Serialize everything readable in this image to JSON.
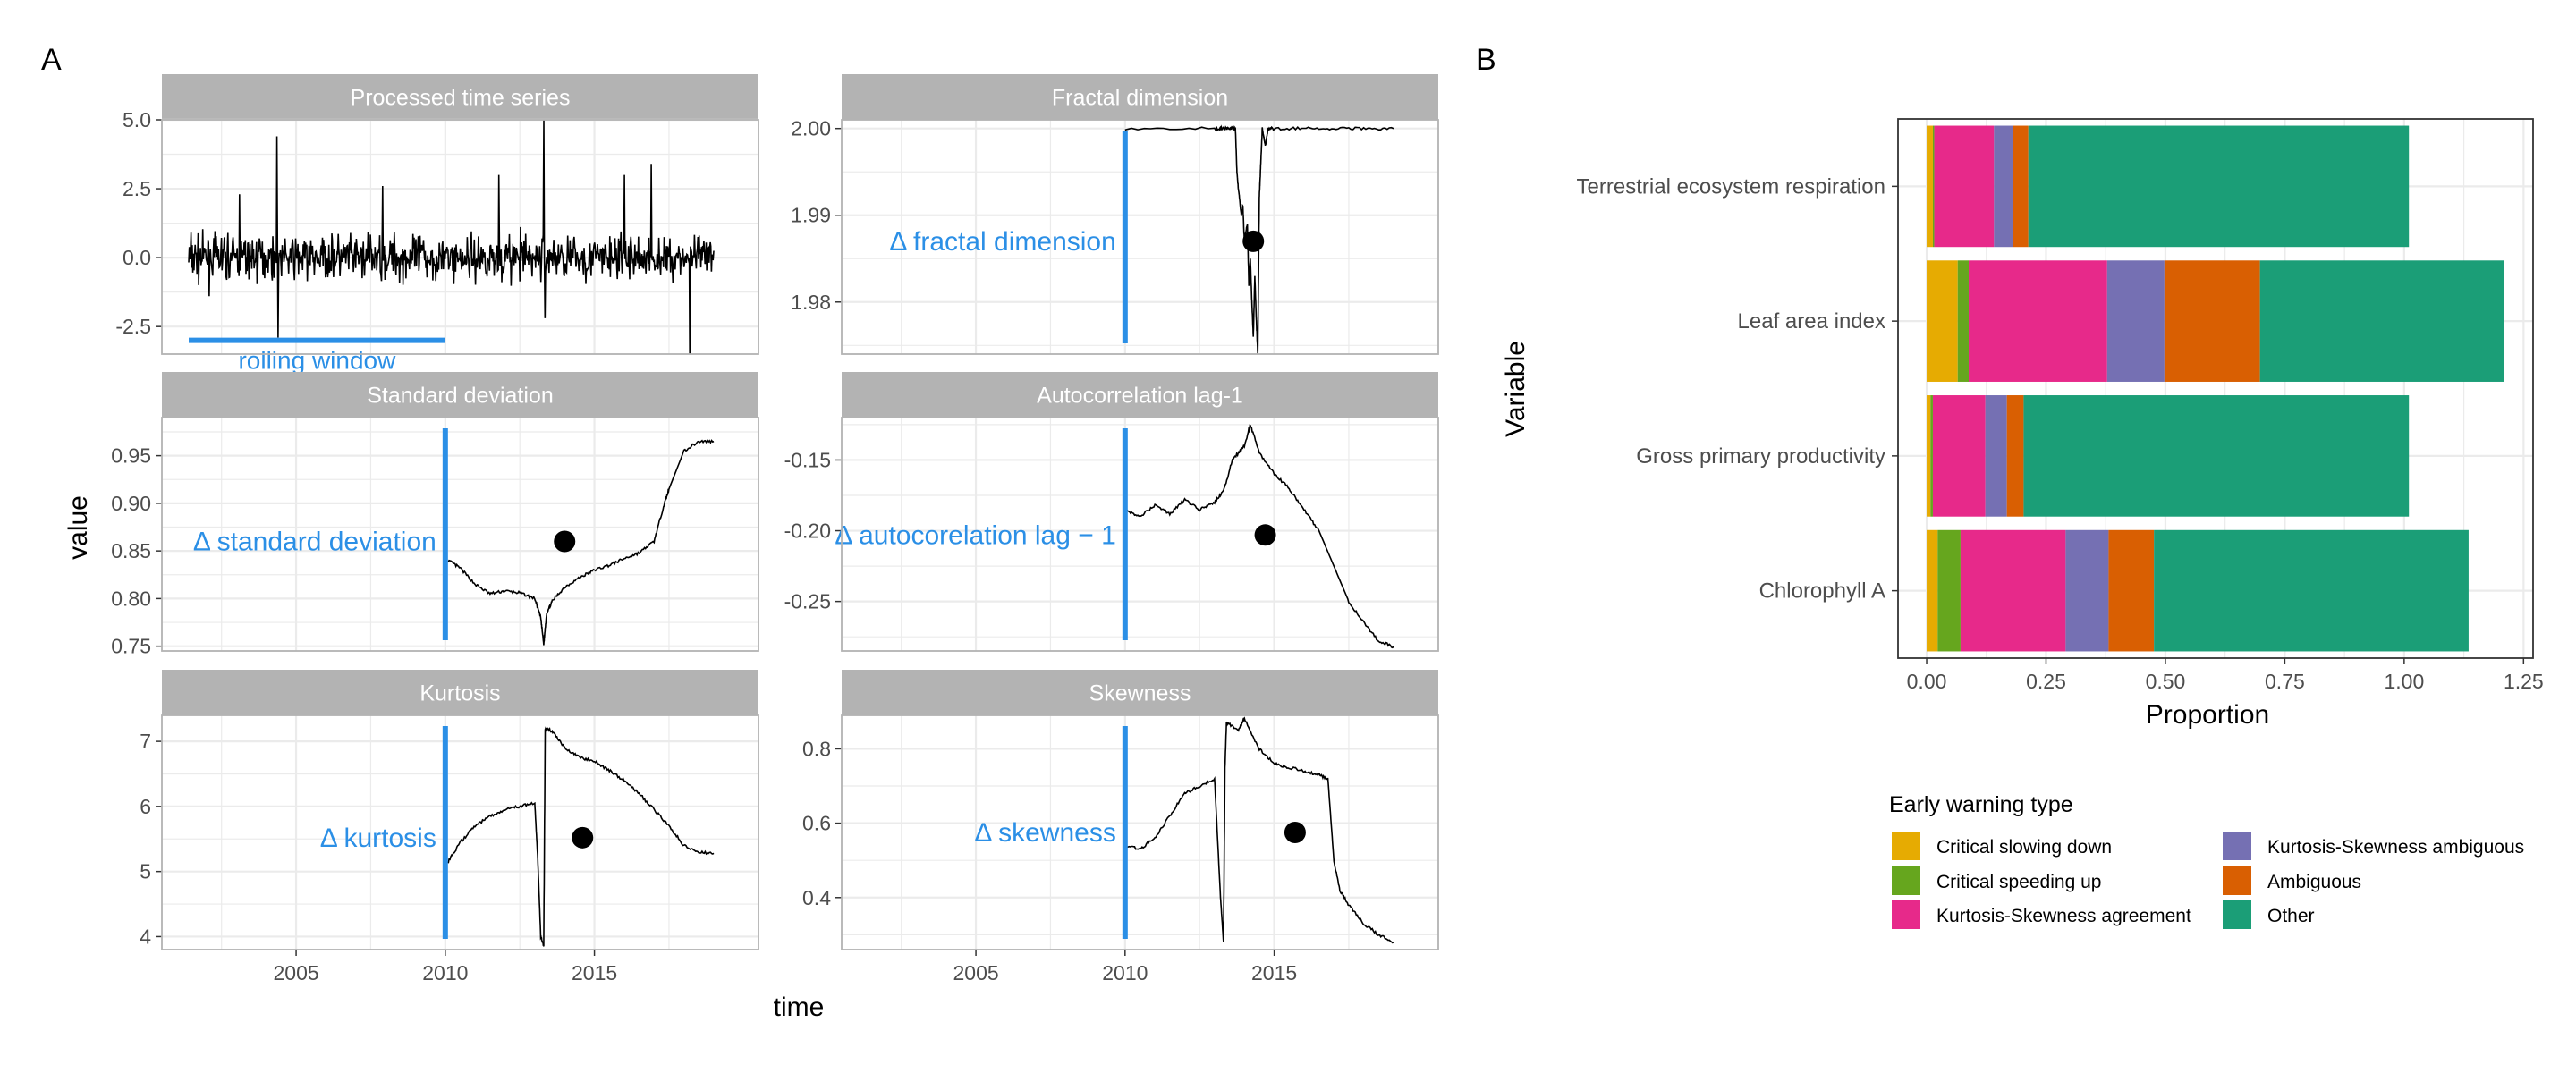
{
  "colors": {
    "strip_bg": "#b3b3b3",
    "strip_text": "#ffffff",
    "panel_border": "#b3b3b3",
    "grid": "#ebebeb",
    "annotation": "#2b8fe6",
    "line": "#000000",
    "tick_text": "#4d4d4d",
    "axis_title": "#000000"
  },
  "panel_a": {
    "label": "A",
    "xlabel": "time",
    "ylabel": "value",
    "x_ticks": [
      2005,
      2010,
      2015
    ],
    "xlim": [
      2000.5,
      2020.5
    ]
  },
  "panel_b": {
    "label": "B",
    "xlabel": "Proportion",
    "ylabel": "Variable",
    "legend_title": "Early warning type"
  },
  "chart_data": [
    {
      "type": "line",
      "title": "Processed time series",
      "ylim": [
        -3.5,
        5.0
      ],
      "y_ticks": [
        "5.0",
        "2.5",
        "0.0",
        "-2.5"
      ],
      "y_tick_values": [
        5.0,
        2.5,
        0.0,
        -2.5
      ],
      "noise": true,
      "rolling_window": {
        "label": "rolling window",
        "x_start": 2001.4,
        "x_end": 2010.0,
        "y": -3.0
      }
    },
    {
      "type": "line",
      "title": "Fractal dimension",
      "ylim": [
        1.974,
        2.001
      ],
      "y_ticks": [
        "2.00",
        "1.99",
        "1.98"
      ],
      "y_tick_values": [
        2.0,
        1.99,
        1.98
      ],
      "series_x": [
        2010.0,
        2013.0,
        2013.2,
        2013.4,
        2013.6,
        2013.7,
        2013.75,
        2013.8,
        2013.9,
        2013.95,
        2014.0,
        2014.1,
        2014.15,
        2014.2,
        2014.25,
        2014.3,
        2014.35,
        2014.4,
        2014.45,
        2014.5,
        2014.55,
        2014.6,
        2014.7,
        2014.8,
        2015.0,
        2016.0,
        2017.0,
        2018.0,
        2019.0
      ],
      "series_y": [
        2.0,
        2.0,
        2.0,
        2.0,
        2.0,
        2.0,
        1.995,
        1.993,
        1.99,
        1.991,
        1.987,
        1.989,
        1.982,
        1.985,
        1.98,
        1.976,
        1.983,
        1.978,
        1.974,
        1.992,
        1.996,
        2.0,
        1.998,
        2.0,
        2.0,
        2.0,
        2.0,
        2.0,
        2.0
      ],
      "delta_label": "Δ fractal dimension",
      "delta_x": 2010.0,
      "dot": {
        "x": 2014.3,
        "y": 1.987
      }
    },
    {
      "type": "line",
      "title": "Standard deviation",
      "ylim": [
        0.745,
        0.99
      ],
      "y_ticks": [
        "0.95",
        "0.90",
        "0.85",
        "0.80",
        "0.75"
      ],
      "y_tick_values": [
        0.95,
        0.9,
        0.85,
        0.8,
        0.75
      ],
      "series_x": [
        2010.1,
        2010.5,
        2011.0,
        2011.5,
        2012.0,
        2012.5,
        2013.0,
        2013.2,
        2013.3,
        2013.4,
        2013.6,
        2014.0,
        2014.5,
        2015.0,
        2015.5,
        2016.0,
        2016.5,
        2017.0,
        2017.3,
        2017.5,
        2018.0,
        2018.5,
        2019.0
      ],
      "series_y": [
        0.84,
        0.832,
        0.815,
        0.805,
        0.808,
        0.806,
        0.8,
        0.78,
        0.752,
        0.785,
        0.798,
        0.812,
        0.822,
        0.83,
        0.835,
        0.842,
        0.848,
        0.86,
        0.895,
        0.915,
        0.955,
        0.965,
        0.965
      ],
      "delta_label": "Δ standard deviation",
      "delta_x": 2010.0,
      "dot": {
        "x": 2014.0,
        "y": 0.86
      }
    },
    {
      "type": "line",
      "title": "Autocorrelation lag-1",
      "ylim": [
        -0.285,
        -0.12
      ],
      "y_ticks": [
        "-0.15",
        "-0.20",
        "-0.25"
      ],
      "y_tick_values": [
        -0.15,
        -0.2,
        -0.25
      ],
      "series_x": [
        2010.0,
        2010.5,
        2011.0,
        2011.5,
        2012.0,
        2012.5,
        2013.0,
        2013.3,
        2013.6,
        2014.0,
        2014.2,
        2014.5,
        2015.0,
        2015.5,
        2016.0,
        2016.5,
        2017.0,
        2017.5,
        2018.0,
        2018.5,
        2019.0
      ],
      "series_y": [
        -0.185,
        -0.19,
        -0.182,
        -0.188,
        -0.178,
        -0.185,
        -0.18,
        -0.172,
        -0.15,
        -0.14,
        -0.125,
        -0.145,
        -0.16,
        -0.17,
        -0.185,
        -0.2,
        -0.225,
        -0.25,
        -0.265,
        -0.278,
        -0.282
      ],
      "delta_label": "Δ autocorelation lag − 1",
      "delta_x": 2010.0,
      "dot": {
        "x": 2014.7,
        "y": -0.203
      }
    },
    {
      "type": "line",
      "title": "Kurtosis",
      "ylim": [
        3.8,
        7.4
      ],
      "y_ticks": [
        "7",
        "6",
        "5",
        "4"
      ],
      "y_tick_values": [
        7,
        6,
        5,
        4
      ],
      "series_x": [
        2010.1,
        2010.5,
        2011.0,
        2011.5,
        2012.0,
        2012.5,
        2013.0,
        2013.1,
        2013.2,
        2013.3,
        2013.35,
        2013.4,
        2013.6,
        2014.0,
        2014.5,
        2015.0,
        2015.5,
        2016.0,
        2016.5,
        2017.0,
        2017.5,
        2018.0,
        2018.5,
        2019.0
      ],
      "series_y": [
        5.15,
        5.45,
        5.7,
        5.85,
        5.95,
        6.0,
        6.05,
        5.2,
        4.0,
        3.85,
        7.2,
        7.2,
        7.15,
        6.9,
        6.75,
        6.7,
        6.55,
        6.4,
        6.2,
        5.95,
        5.7,
        5.4,
        5.3,
        5.28
      ],
      "delta_label": "Δ kurtosis",
      "delta_x": 2010.0,
      "dot": {
        "x": 2014.6,
        "y": 5.52
      }
    },
    {
      "type": "line",
      "title": "Skewness",
      "ylim": [
        0.26,
        0.89
      ],
      "y_ticks": [
        "0.8",
        "0.6",
        "0.4"
      ],
      "y_tick_values": [
        0.8,
        0.6,
        0.4
      ],
      "series_x": [
        2010.0,
        2010.5,
        2011.0,
        2011.5,
        2012.0,
        2012.5,
        2013.0,
        2013.2,
        2013.3,
        2013.35,
        2013.4,
        2013.8,
        2014.0,
        2014.5,
        2015.0,
        2015.5,
        2016.0,
        2016.5,
        2016.8,
        2017.0,
        2017.2,
        2017.5,
        2018.0,
        2018.5,
        2019.0
      ],
      "series_y": [
        0.54,
        0.53,
        0.56,
        0.62,
        0.68,
        0.7,
        0.72,
        0.4,
        0.28,
        0.75,
        0.87,
        0.85,
        0.88,
        0.8,
        0.76,
        0.75,
        0.74,
        0.73,
        0.72,
        0.5,
        0.42,
        0.38,
        0.33,
        0.3,
        0.28
      ],
      "delta_label": "Δ skewness",
      "delta_x": 2010.0,
      "dot": {
        "x": 2015.7,
        "y": 0.575
      }
    },
    {
      "type": "bar",
      "stacked": true,
      "orientation": "horizontal",
      "title": "",
      "xlabel": "Proportion",
      "ylabel": "Variable",
      "xlim": [
        -0.06,
        1.27
      ],
      "x_ticks": [
        "0.00",
        "0.25",
        "0.50",
        "0.75",
        "1.00",
        "1.25"
      ],
      "x_tick_values": [
        0.0,
        0.25,
        0.5,
        0.75,
        1.0,
        1.25
      ],
      "categories": [
        "Terrestrial ecosystem respiration",
        "Leaf area index",
        "Gross primary productivity",
        "Chlorophyll A"
      ],
      "series": [
        {
          "name": "Critical slowing down",
          "color": "#e6ab02",
          "values": [
            0.013,
            0.065,
            0.008,
            0.023
          ]
        },
        {
          "name": "Critical speeding up",
          "color": "#66a61e",
          "values": [
            0.003,
            0.023,
            0.005,
            0.048
          ]
        },
        {
          "name": "Kurtosis-Skewness agreement",
          "color": "#e7298a",
          "values": [
            0.125,
            0.29,
            0.11,
            0.22
          ]
        },
        {
          "name": "Kurtosis-Skewness ambiguous",
          "color": "#7570b3",
          "values": [
            0.04,
            0.12,
            0.045,
            0.09
          ]
        },
        {
          "name": "Ambiguous",
          "color": "#d95f02",
          "values": [
            0.032,
            0.2,
            0.035,
            0.095
          ]
        },
        {
          "name": "Other",
          "color": "#1b9e77",
          "values": [
            0.797,
            0.512,
            0.807,
            0.659
          ]
        }
      ]
    }
  ]
}
